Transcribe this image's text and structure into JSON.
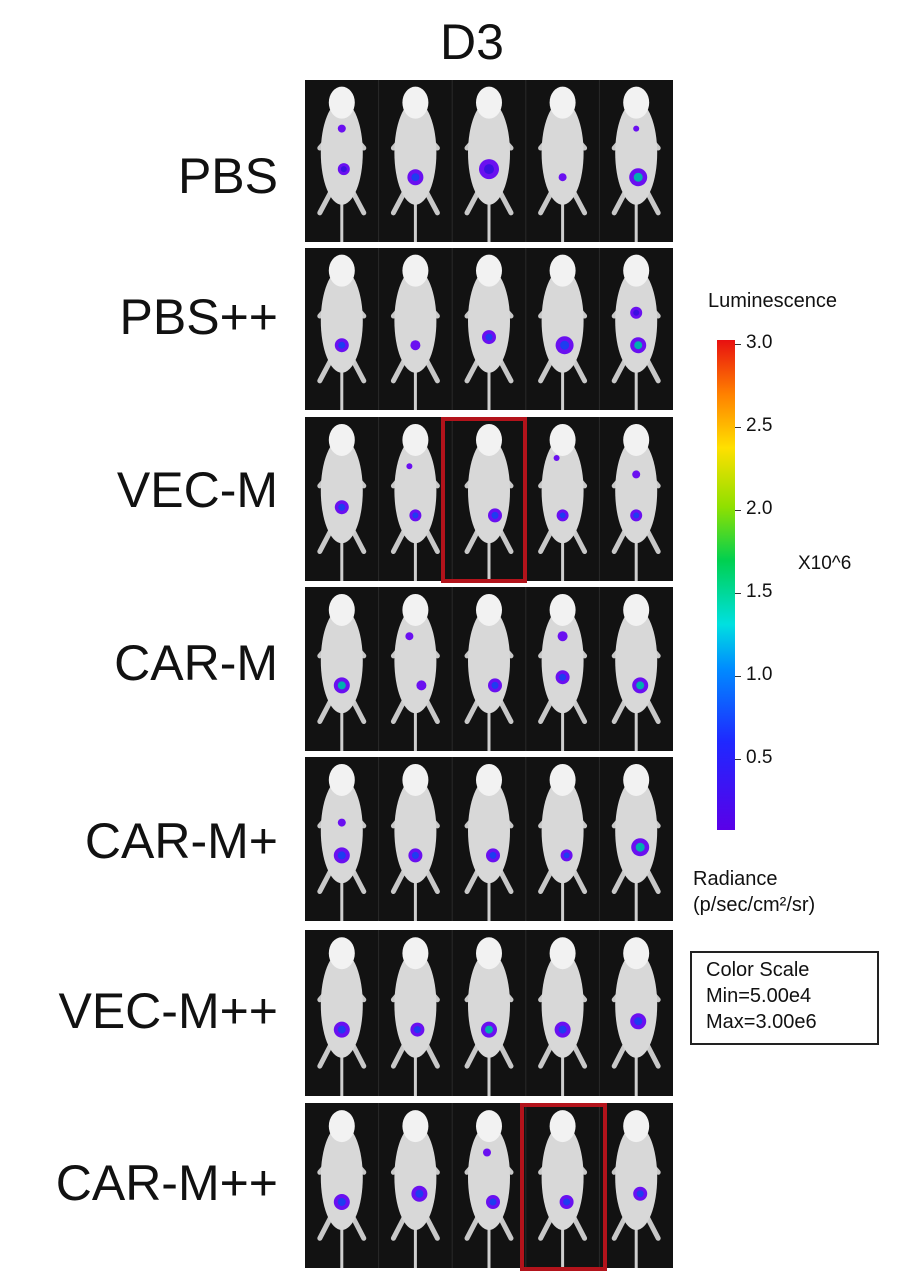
{
  "title": "D3",
  "groups": [
    {
      "label": "PBS",
      "highlight": null
    },
    {
      "label": "PBS++",
      "highlight": null
    },
    {
      "label": "VEC-M",
      "highlight": 2
    },
    {
      "label": "CAR-M",
      "highlight": null
    },
    {
      "label": "CAR-M+",
      "highlight": null
    },
    {
      "label": "VEC-M++",
      "highlight": null
    },
    {
      "label": "CAR-M++",
      "highlight": 3
    }
  ],
  "colorbar": {
    "title": "Luminescence",
    "ticks": [
      "3.0",
      "2.5",
      "2.0",
      "1.5",
      "1.0",
      "0.5"
    ],
    "exponent": "X10^6",
    "units_line1": "Radiance",
    "units_line2": "(p/sec/cm²/sr)",
    "colors": [
      "#5a00e8",
      "#1f28ff",
      "#008cff",
      "#00e0e0",
      "#00d050",
      "#90e000",
      "#ffe000",
      "#ff8000",
      "#e81010"
    ]
  },
  "color_scale": {
    "title": "Color Scale",
    "min": "Min=5.00e4",
    "max": "Max=3.00e6"
  },
  "highlight_color": "#b3131b"
}
